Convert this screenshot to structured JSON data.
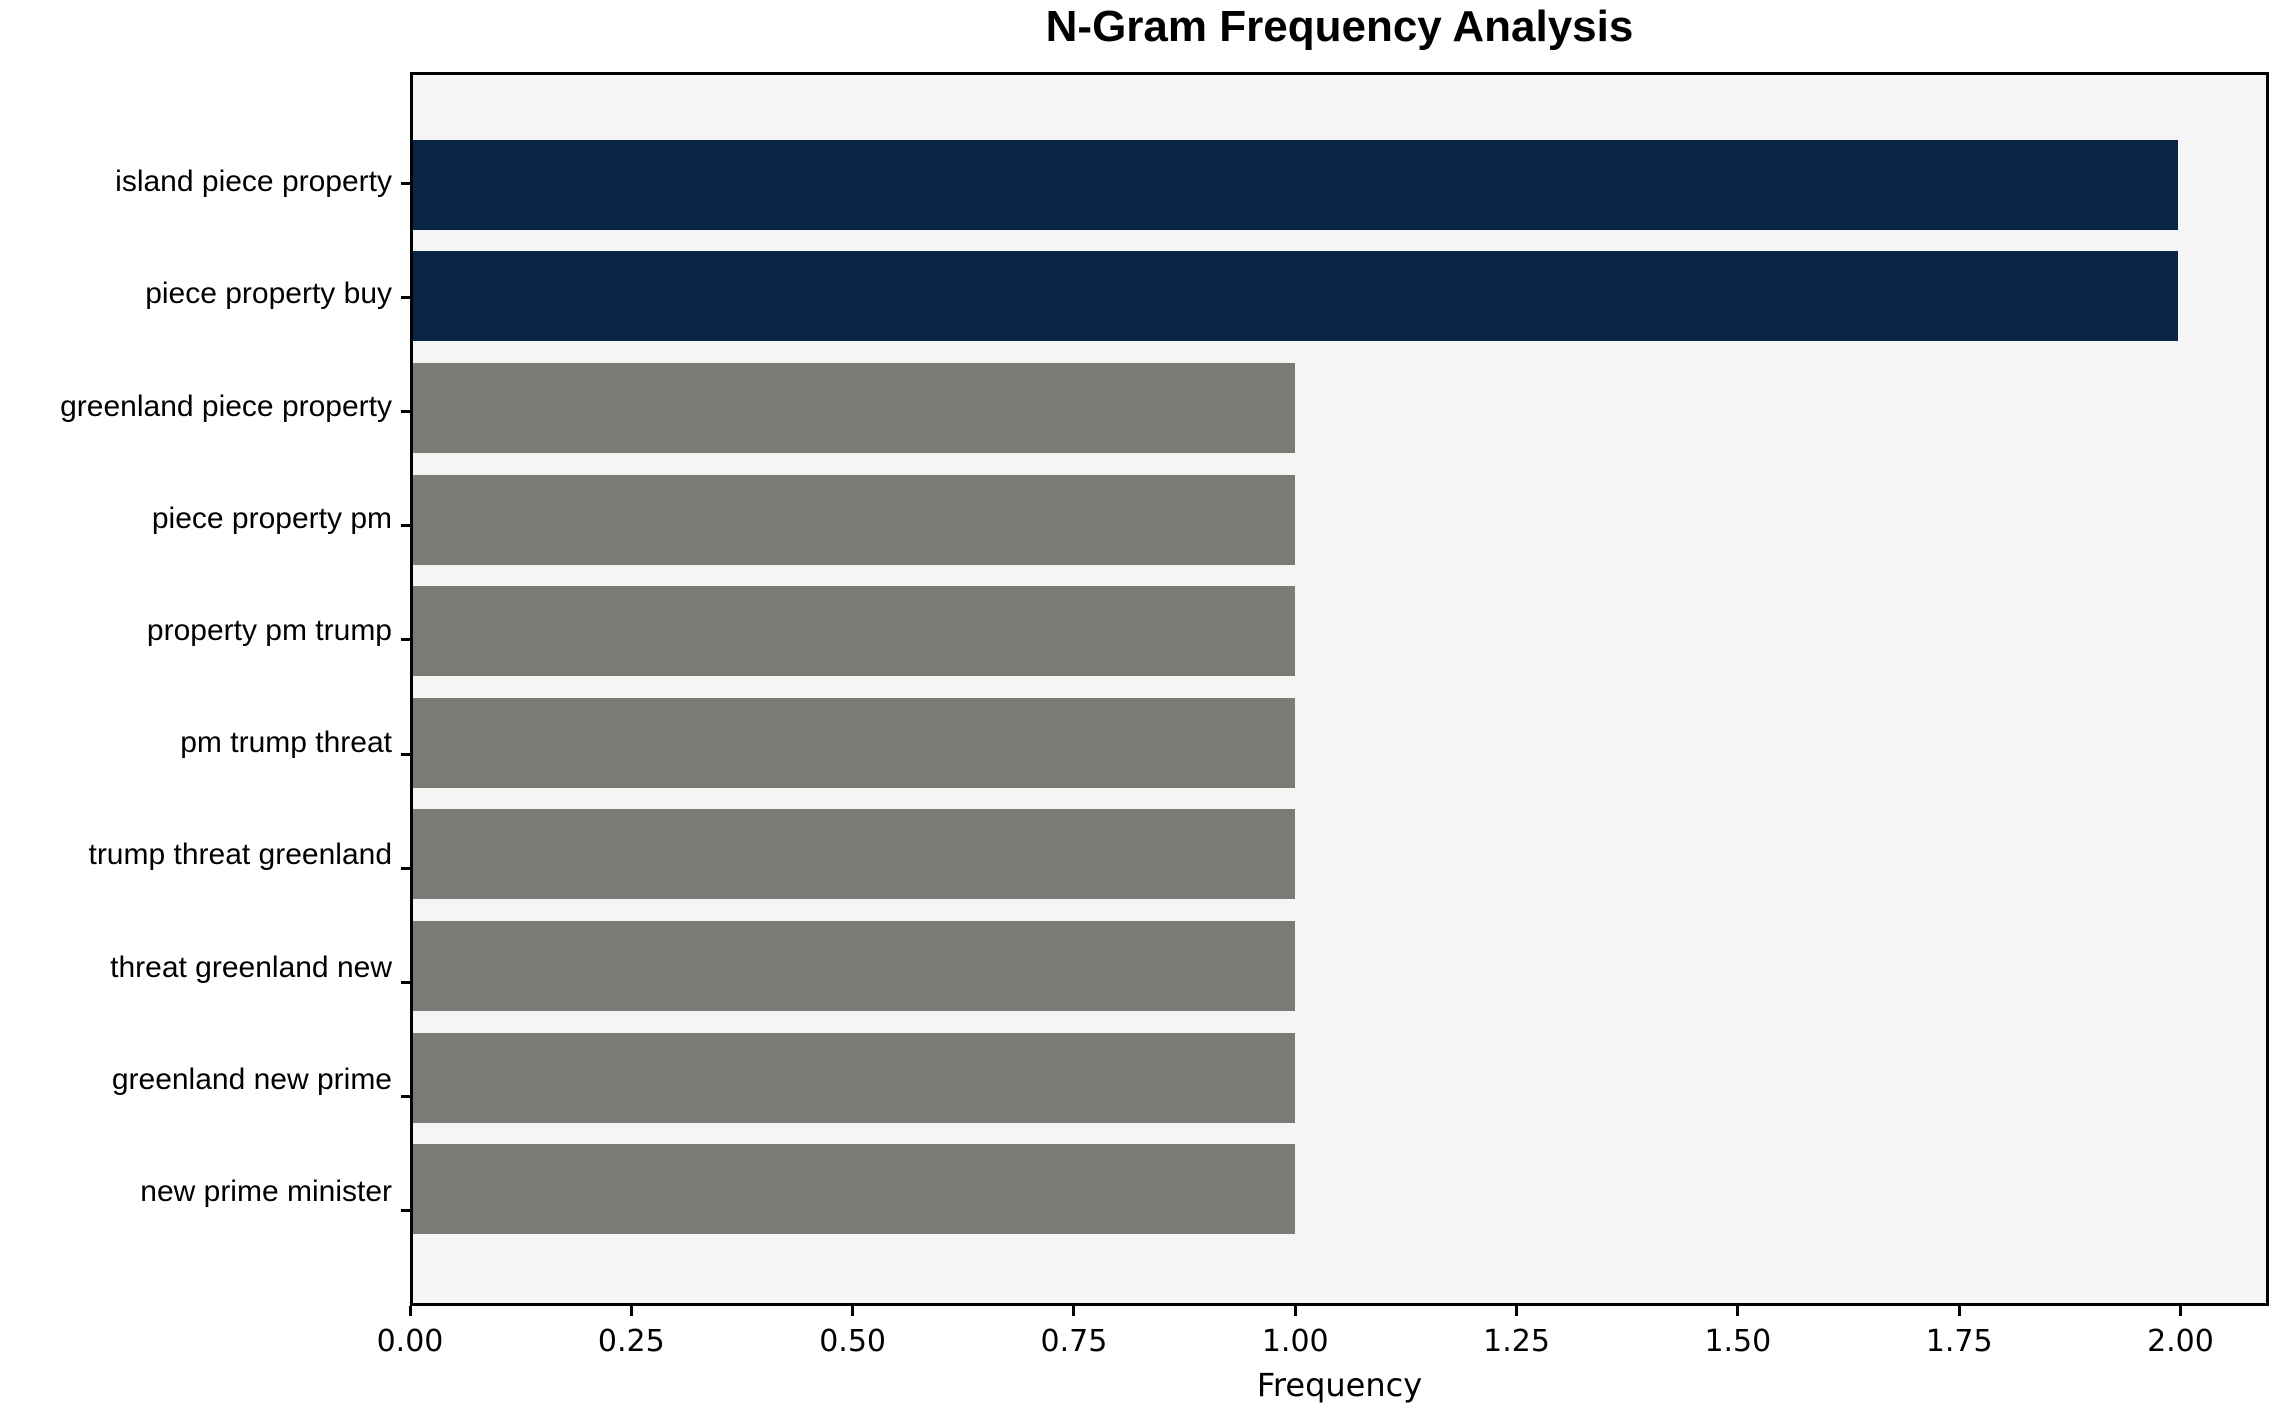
{
  "chart_data": {
    "type": "bar",
    "orientation": "horizontal",
    "title": "N-Gram Frequency Analysis",
    "xlabel": "Frequency",
    "ylabel": "",
    "categories": [
      "island piece property",
      "piece property buy",
      "greenland piece property",
      "piece property pm",
      "property pm trump",
      "pm trump threat",
      "trump threat greenland",
      "threat greenland new",
      "greenland new prime",
      "new prime minister"
    ],
    "values": [
      2,
      2,
      1,
      1,
      1,
      1,
      1,
      1,
      1,
      1
    ],
    "bar_colors": [
      "#0a2446",
      "#0a2446",
      "#7b7b76",
      "#7b7b76",
      "#7b7b76",
      "#7b7b76",
      "#7b7b76",
      "#7b7b76",
      "#7b7b76",
      "#7b7b76"
    ],
    "xlim": [
      0,
      2.1
    ],
    "xticks": [
      {
        "value": 0.0,
        "label": "0.00"
      },
      {
        "value": 0.25,
        "label": "0.25"
      },
      {
        "value": 0.5,
        "label": "0.50"
      },
      {
        "value": 0.75,
        "label": "0.75"
      },
      {
        "value": 1.0,
        "label": "1.00"
      },
      {
        "value": 1.25,
        "label": "1.25"
      },
      {
        "value": 1.5,
        "label": "1.50"
      },
      {
        "value": 1.75,
        "label": "1.75"
      },
      {
        "value": 2.0,
        "label": "2.00"
      }
    ],
    "grid": false,
    "legend_position": "none",
    "plot_background": "#f5f5f5",
    "figure_background": "#ffffff",
    "spine_color": "#000000"
  }
}
